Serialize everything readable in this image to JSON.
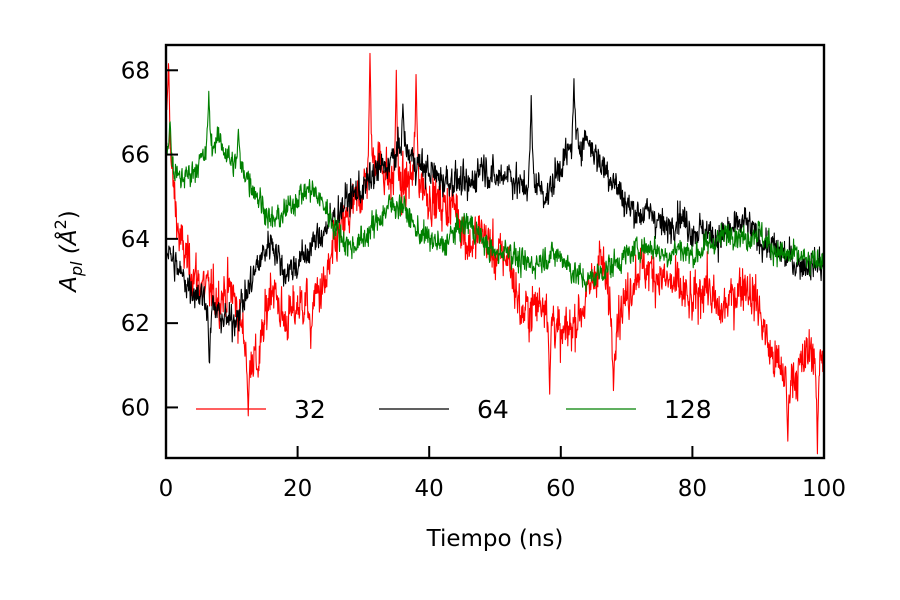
{
  "chart_data": {
    "type": "line",
    "xlabel": "Tiempo (ns)",
    "ylabel": {
      "main": "A",
      "sub": "pl",
      "unit": "(Å",
      "sup": "2",
      "close": ")"
    },
    "xlim": [
      0,
      100
    ],
    "ylim": [
      58.8,
      68.6
    ],
    "xticks": [
      0,
      20,
      40,
      60,
      80,
      100
    ],
    "yticks": [
      60,
      62,
      64,
      66,
      68
    ],
    "xtick_labels": [
      "0",
      "20",
      "40",
      "60",
      "80",
      "100"
    ],
    "ytick_labels": [
      "60",
      "62",
      "64",
      "66",
      "68"
    ],
    "grid": false,
    "legend": {
      "placement": "bottom",
      "columns": 3
    },
    "x": [
      0,
      2,
      4,
      6,
      8,
      10,
      12,
      14,
      16,
      18,
      20,
      22,
      24,
      26,
      28,
      30,
      32,
      34,
      36,
      38,
      40,
      42,
      44,
      46,
      48,
      50,
      52,
      54,
      56,
      58,
      60,
      62,
      64,
      66,
      68,
      70,
      72,
      74,
      76,
      78,
      80,
      82,
      84,
      86,
      88,
      90,
      92,
      94,
      96,
      98,
      100
    ],
    "series": [
      {
        "name": "32",
        "color": "#ff0000",
        "values": [
          66.8,
          64.0,
          63.2,
          62.8,
          62.6,
          62.8,
          61.6,
          61.0,
          63.0,
          62.0,
          62.4,
          62.6,
          62.8,
          64.0,
          64.6,
          65.2,
          66.0,
          65.4,
          65.2,
          65.6,
          65.0,
          64.8,
          64.8,
          63.8,
          64.2,
          63.6,
          63.6,
          62.2,
          62.4,
          62.6,
          61.6,
          62.0,
          62.6,
          63.6,
          62.0,
          62.6,
          63.4,
          63.2,
          63.0,
          62.8,
          62.4,
          63.0,
          62.2,
          62.6,
          63.0,
          62.4,
          61.2,
          60.8,
          60.8,
          61.4,
          61.2
        ],
        "peaks": [
          {
            "x": 0.4,
            "y": 68.3
          },
          {
            "x": 12.5,
            "y": 59.8
          },
          {
            "x": 22,
            "y": 61.4
          },
          {
            "x": 31,
            "y": 68.4
          },
          {
            "x": 35,
            "y": 68.0
          },
          {
            "x": 38,
            "y": 67.9
          },
          {
            "x": 58.3,
            "y": 60.2
          },
          {
            "x": 68,
            "y": 60.4
          },
          {
            "x": 94.5,
            "y": 59.2
          },
          {
            "x": 99,
            "y": 58.9
          }
        ]
      },
      {
        "name": "64",
        "color": "#000000",
        "values": [
          63.8,
          63.2,
          62.8,
          62.6,
          62.2,
          62.0,
          62.6,
          63.4,
          64.0,
          63.2,
          63.4,
          63.8,
          64.2,
          64.6,
          65.0,
          65.2,
          65.6,
          65.8,
          66.2,
          65.8,
          65.6,
          65.4,
          65.4,
          65.2,
          65.8,
          65.4,
          65.6,
          65.2,
          65.4,
          65.0,
          65.8,
          66.2,
          66.4,
          65.8,
          65.4,
          64.8,
          64.6,
          64.6,
          64.2,
          64.6,
          64.2,
          64.2,
          64.0,
          64.2,
          64.4,
          64.0,
          63.8,
          63.6,
          63.4,
          63.4,
          63.4
        ],
        "peaks": [
          {
            "x": 6.6,
            "y": 60.9
          },
          {
            "x": 36,
            "y": 67.2
          },
          {
            "x": 55.5,
            "y": 67.4
          },
          {
            "x": 62,
            "y": 67.8
          }
        ]
      },
      {
        "name": "128",
        "color": "#008000",
        "values": [
          66.0,
          65.4,
          65.6,
          66.0,
          66.4,
          65.8,
          65.6,
          65.0,
          64.4,
          64.6,
          65.0,
          65.2,
          64.8,
          64.2,
          63.8,
          64.0,
          64.4,
          64.8,
          64.8,
          64.2,
          64.0,
          63.8,
          64.2,
          64.4,
          64.0,
          63.6,
          63.8,
          63.4,
          63.4,
          63.6,
          63.6,
          63.2,
          63.0,
          63.2,
          63.4,
          63.6,
          63.8,
          63.8,
          63.6,
          63.8,
          63.6,
          63.8,
          64.0,
          64.2,
          64.0,
          64.2,
          63.8,
          63.6,
          63.6,
          63.4,
          63.6
        ],
        "peaks": [
          {
            "x": 0.6,
            "y": 66.9
          },
          {
            "x": 6.5,
            "y": 67.5
          },
          {
            "x": 11,
            "y": 66.6
          }
        ]
      }
    ]
  }
}
